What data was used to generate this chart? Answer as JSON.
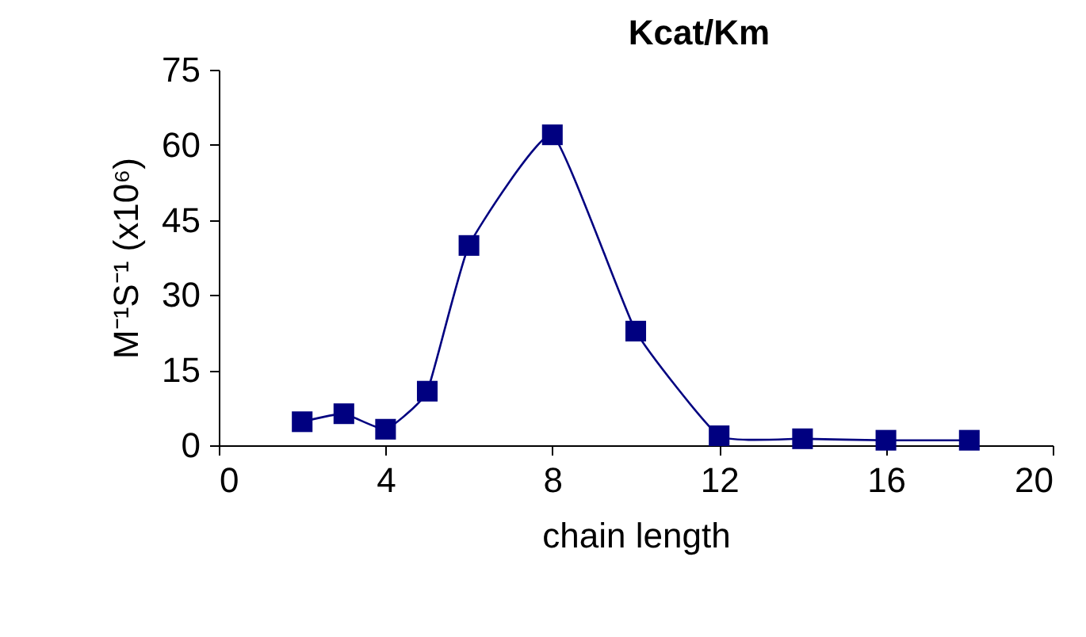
{
  "chart_data": {
    "type": "line",
    "title": "Kcat/Km",
    "xlabel": "chain length",
    "ylabel": "M⁻¹S⁻¹ (x10⁶)",
    "x": [
      2,
      3,
      4,
      5,
      6,
      8,
      10,
      12,
      14,
      16,
      18
    ],
    "series": [
      {
        "color": "#000080",
        "values": [
          4.7,
          6.3,
          3.2,
          10.8,
          39.9,
          62,
          22.8,
          1.9,
          1.3,
          1,
          1
        ]
      }
    ],
    "xlim": [
      0,
      20
    ],
    "xticks": [
      0,
      4,
      8,
      12,
      16,
      20
    ],
    "ylim": [
      0,
      75
    ],
    "yticks": [
      0,
      15,
      30,
      45,
      60,
      75
    ],
    "marker": "square",
    "line_style": "solid"
  }
}
